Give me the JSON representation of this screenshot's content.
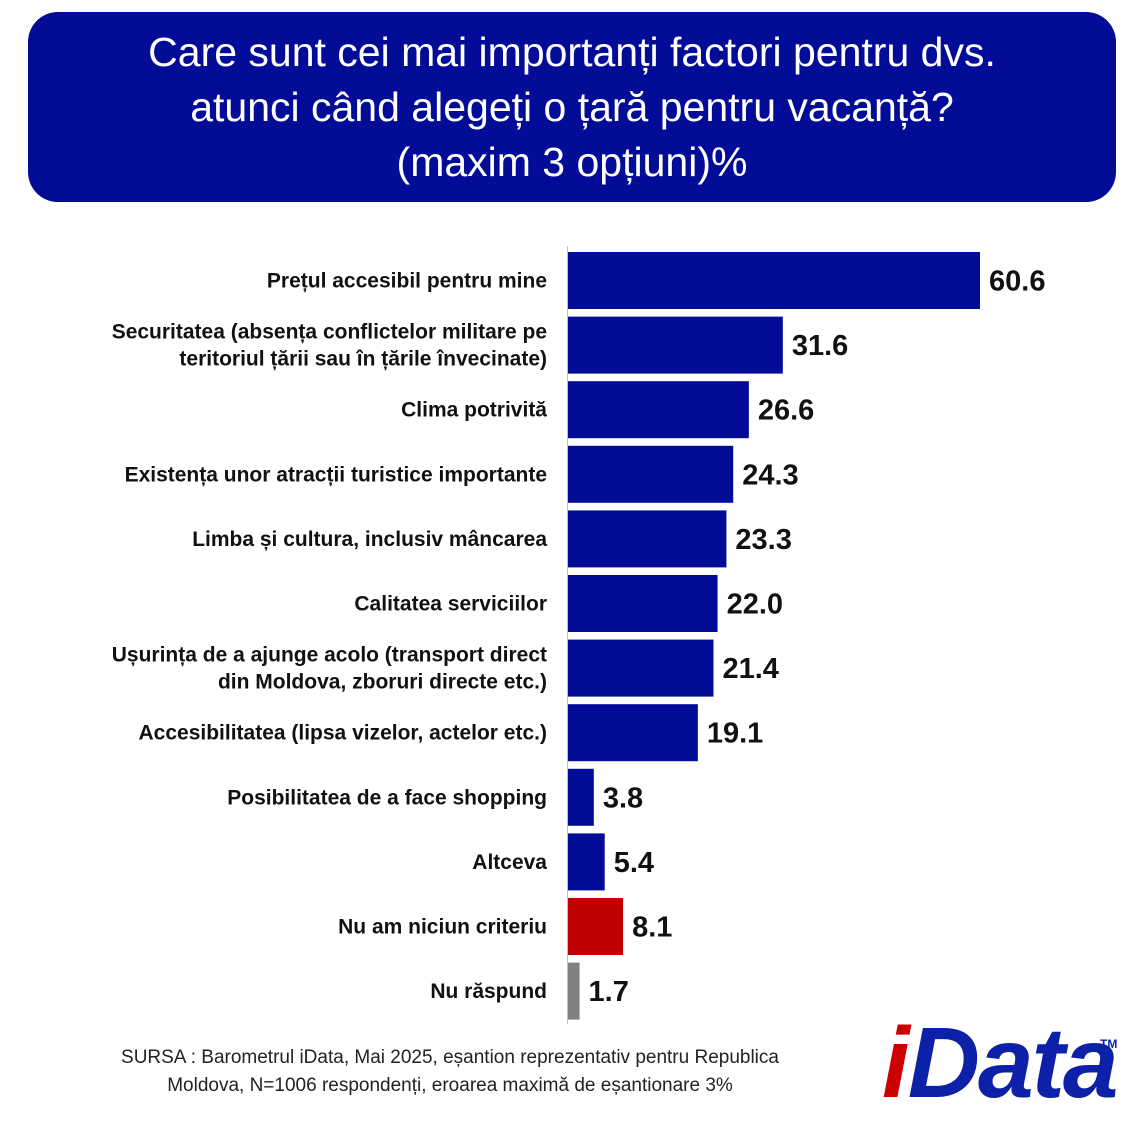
{
  "title": {
    "line1": "Care sunt cei mai importanți factori pentru dvs.",
    "line2": "atunci când alegeți o țară pentru vacanță?",
    "line3": "(maxim 3 opțiuni)%"
  },
  "chart_data": {
    "type": "bar",
    "orientation": "horizontal",
    "title": "Care sunt cei mai importanți factori pentru dvs. atunci când alegeți o țară pentru vacanță? (maxim 3 opțiuni)%",
    "xlim": [
      0,
      60.6
    ],
    "colors": {
      "default": "#020c97",
      "none": "#c00000",
      "no_answer": "#808080"
    },
    "categories": [
      {
        "lines": [
          "Prețul accesibil pentru mine"
        ],
        "value": 60.6,
        "label": "60.6",
        "color": "#020c97"
      },
      {
        "lines": [
          "Securitatea (absența conflictelor militare pe",
          "teritoriul țării sau în țările învecinate)"
        ],
        "value": 31.6,
        "label": "31.6",
        "color": "#020c97"
      },
      {
        "lines": [
          "Clima potrivită"
        ],
        "value": 26.6,
        "label": "26.6",
        "color": "#020c97"
      },
      {
        "lines": [
          "Existența unor atracții turistice importante"
        ],
        "value": 24.3,
        "label": "24.3",
        "color": "#020c97"
      },
      {
        "lines": [
          "Limba și cultura, inclusiv mâncarea"
        ],
        "value": 23.3,
        "label": "23.3",
        "color": "#020c97"
      },
      {
        "lines": [
          "Calitatea serviciilor"
        ],
        "value": 22.0,
        "label": "22.0",
        "color": "#020c97"
      },
      {
        "lines": [
          "Ușurința de a ajunge acolo (transport direct",
          "din Moldova, zboruri directe etc.)"
        ],
        "value": 21.4,
        "label": "21.4",
        "color": "#020c97"
      },
      {
        "lines": [
          "Accesibilitatea (lipsa vizelor, actelor etc.)"
        ],
        "value": 19.1,
        "label": "19.1",
        "color": "#020c97"
      },
      {
        "lines": [
          "Posibilitatea de a face shopping"
        ],
        "value": 3.8,
        "label": "3.8",
        "color": "#020c97"
      },
      {
        "lines": [
          "Altceva"
        ],
        "value": 5.4,
        "label": "5.4",
        "color": "#020c97"
      },
      {
        "lines": [
          "Nu am niciun criteriu"
        ],
        "value": 8.1,
        "label": "8.1",
        "color": "#c00000"
      },
      {
        "lines": [
          "Nu răspund"
        ],
        "value": 1.7,
        "label": "1.7",
        "color": "#808080"
      }
    ]
  },
  "source": {
    "line1": "SURSA : Barometrul iData, Mai 2025, eșantion reprezentativ pentru Republica",
    "line2": "Moldova, N=1006 respondenți, eroarea maximă de eșantionare 3%"
  },
  "logo": {
    "i": "i",
    "rest": "Data",
    "tm": "TM"
  }
}
